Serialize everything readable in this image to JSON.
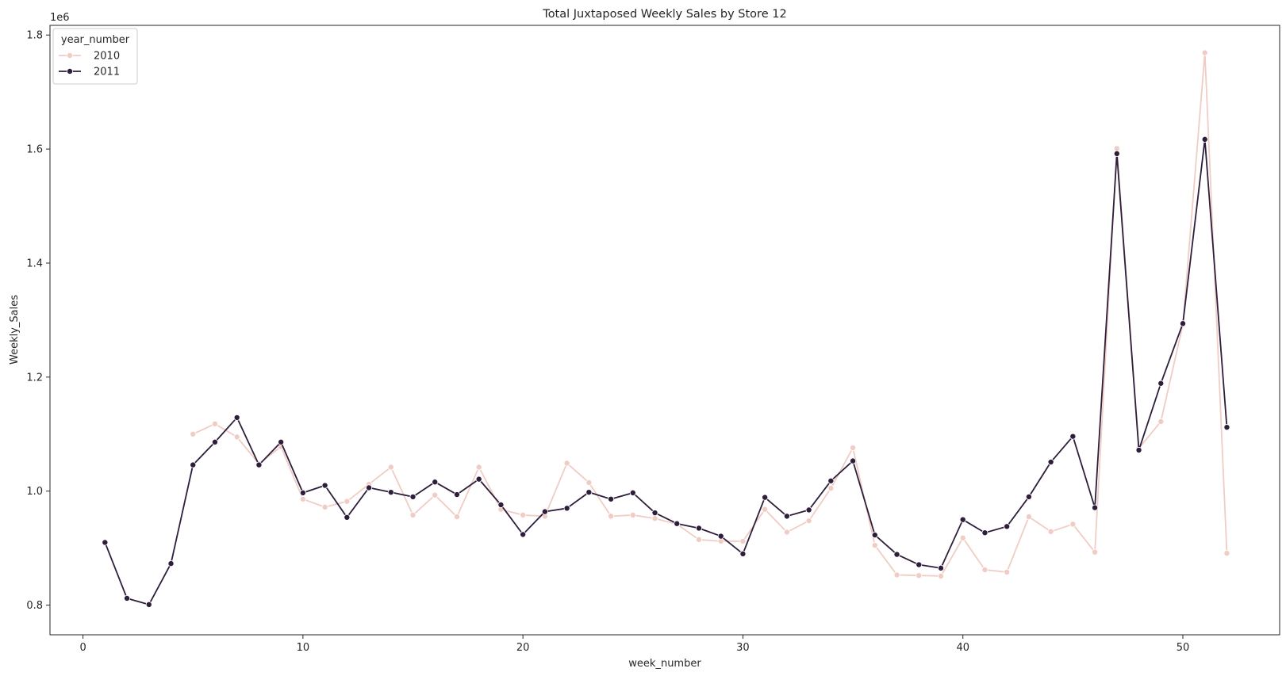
{
  "chart_data": {
    "type": "line",
    "title": "Total Juxtaposed Weekly Sales by Store 12",
    "xlabel": "week_number",
    "ylabel": "Weekly_Sales",
    "y_offset_label": "1e6",
    "xlim": [
      -1.5,
      54.4
    ],
    "ylim": [
      0.748,
      1.817
    ],
    "x_ticks": [
      0,
      10,
      20,
      30,
      40,
      50
    ],
    "x_tick_labels": [
      "0",
      "10",
      "20",
      "30",
      "40",
      "50"
    ],
    "y_ticks": [
      0.8,
      1.0,
      1.2,
      1.4,
      1.6,
      1.8
    ],
    "y_tick_labels": [
      "0.8",
      "1.0",
      "1.2",
      "1.4",
      "1.6",
      "1.8"
    ],
    "grid": false,
    "legend": {
      "title": "year_number",
      "placement": "top-left"
    },
    "series": [
      {
        "name": "2010",
        "color": "#f0cdc4",
        "x": [
          5,
          6,
          7,
          8,
          9,
          10,
          11,
          12,
          13,
          14,
          15,
          16,
          17,
          18,
          19,
          20,
          21,
          22,
          23,
          24,
          25,
          26,
          27,
          28,
          29,
          30,
          31,
          32,
          33,
          34,
          35,
          36,
          37,
          38,
          39,
          40,
          41,
          42,
          43,
          44,
          45,
          46,
          47,
          48,
          49,
          50,
          51,
          52
        ],
        "values": [
          1.1,
          1.118,
          1.095,
          1.048,
          1.078,
          0.986,
          0.972,
          0.982,
          1.012,
          1.042,
          0.958,
          0.993,
          0.955,
          1.042,
          0.968,
          0.958,
          0.956,
          1.049,
          1.015,
          0.956,
          0.958,
          0.952,
          0.942,
          0.915,
          0.912,
          0.912,
          0.968,
          0.928,
          0.948,
          1.005,
          1.076,
          0.905,
          0.853,
          0.852,
          0.851,
          0.918,
          0.862,
          0.858,
          0.955,
          0.929,
          0.942,
          0.893,
          1.601,
          1.075,
          1.122,
          1.292,
          1.769,
          0.891
        ]
      },
      {
        "name": "2011",
        "color": "#2e1e3b",
        "x": [
          1,
          2,
          3,
          4,
          5,
          6,
          7,
          8,
          9,
          10,
          11,
          12,
          13,
          14,
          15,
          16,
          17,
          18,
          19,
          20,
          21,
          22,
          23,
          24,
          25,
          26,
          27,
          28,
          29,
          30,
          31,
          32,
          33,
          34,
          35,
          36,
          37,
          38,
          39,
          40,
          41,
          42,
          43,
          44,
          45,
          46,
          47,
          48,
          49,
          50,
          51,
          52
        ],
        "values": [
          0.91,
          0.812,
          0.801,
          0.873,
          1.046,
          1.086,
          1.129,
          1.046,
          1.086,
          0.997,
          1.01,
          0.954,
          1.006,
          0.998,
          0.99,
          1.016,
          0.994,
          1.021,
          0.976,
          0.924,
          0.964,
          0.97,
          0.998,
          0.986,
          0.997,
          0.962,
          0.943,
          0.935,
          0.921,
          0.89,
          0.989,
          0.956,
          0.967,
          1.018,
          1.053,
          0.923,
          0.889,
          0.871,
          0.865,
          0.95,
          0.927,
          0.938,
          0.99,
          1.051,
          1.096,
          0.971,
          1.592,
          1.072,
          1.189,
          1.294,
          1.617,
          1.112
        ]
      }
    ]
  }
}
